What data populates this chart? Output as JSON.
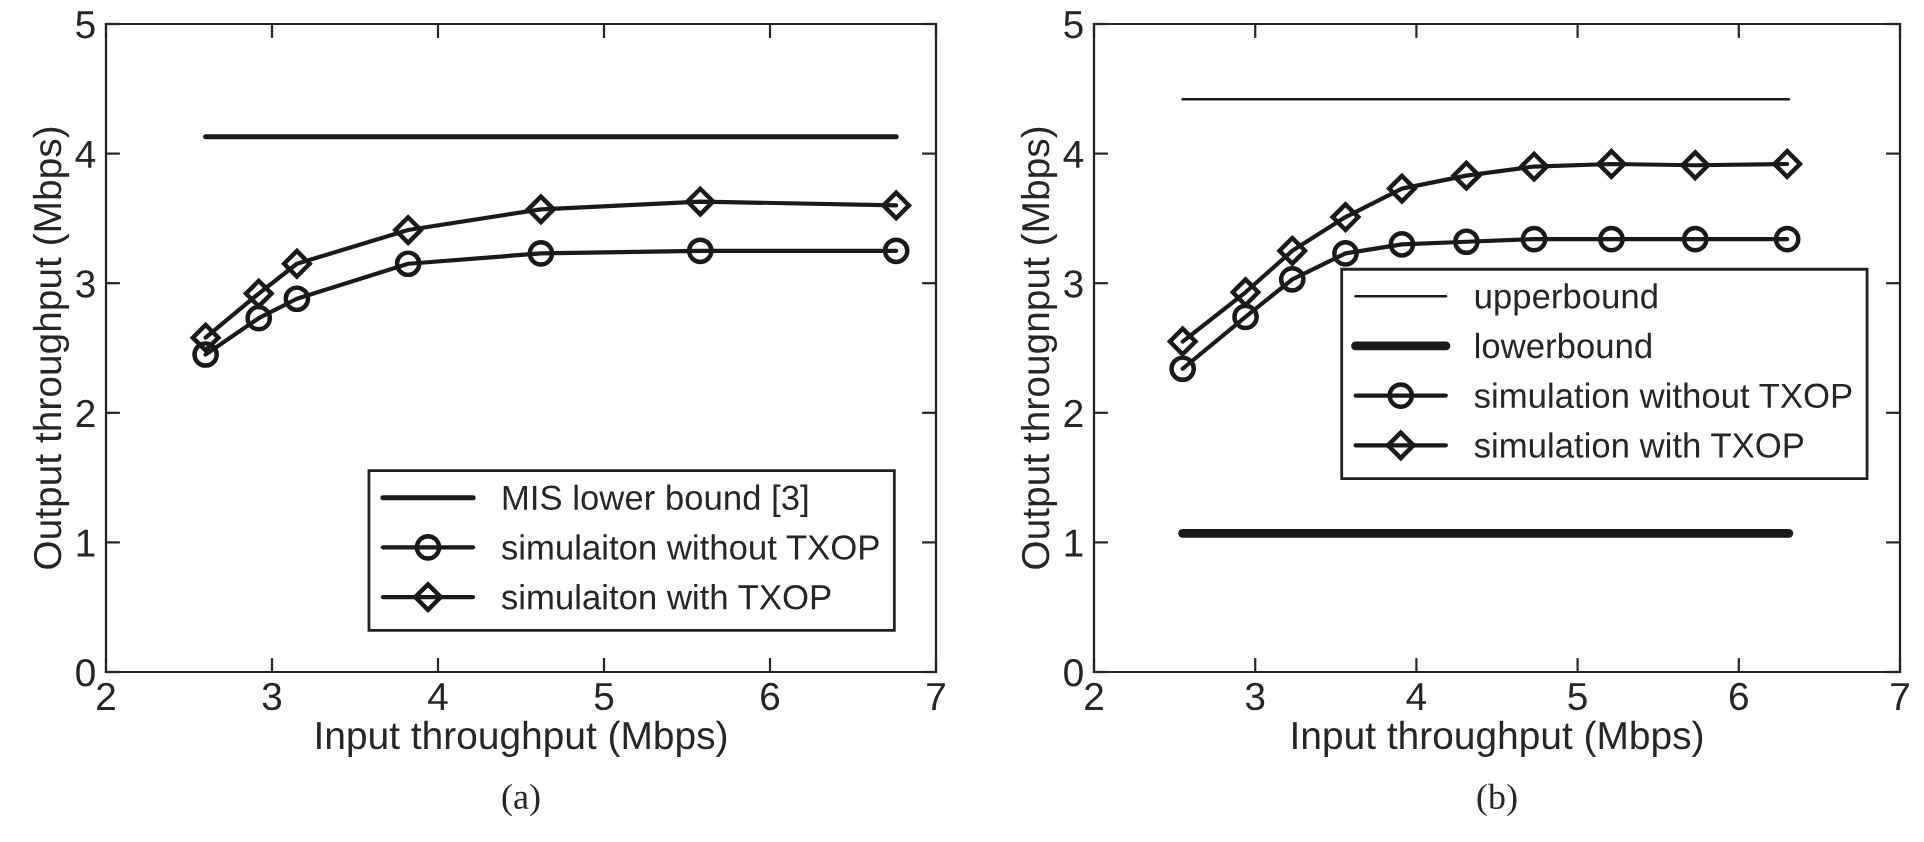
{
  "chart_data": [
    {
      "type": "line",
      "xlabel": "Input throughput (Mbps)",
      "ylabel": "Output throughput (Mbps)",
      "xlim": [
        2,
        7
      ],
      "ylim": [
        0,
        5
      ],
      "xticks": [
        2,
        3,
        4,
        5,
        6,
        7
      ],
      "yticks": [
        0,
        1,
        2,
        3,
        4,
        5
      ],
      "grid": false,
      "legend": "bottom right",
      "annotations": [
        "(a)"
      ],
      "series": [
        {
          "name": "MIS lower bound [3]",
          "color": "#1a1a1a",
          "marker": "none",
          "x": [
            2.6,
            6.76
          ],
          "values": [
            4.13,
            4.13
          ]
        },
        {
          "name": "simulaiton without TXOP",
          "color": "#1a1a1a",
          "marker": "circle",
          "x": [
            2.6,
            2.92,
            3.15,
            3.82,
            4.62,
            5.58,
            6.76
          ],
          "values": [
            2.45,
            2.73,
            2.88,
            3.15,
            3.23,
            3.25,
            3.25
          ]
        },
        {
          "name": "simulaiton with TXOP",
          "color": "#1a1a1a",
          "marker": "diamond",
          "x": [
            2.6,
            2.92,
            3.15,
            3.82,
            4.62,
            5.58,
            6.76
          ],
          "values": [
            2.58,
            2.92,
            3.15,
            3.41,
            3.57,
            3.63,
            3.6
          ]
        }
      ]
    },
    {
      "type": "line",
      "xlabel": "Input throughput (Mbps)",
      "ylabel": "Output througnput (Mbps)",
      "xlim": [
        2,
        7
      ],
      "ylim": [
        0,
        5
      ],
      "xticks": [
        2,
        3,
        4,
        5,
        6,
        7
      ],
      "yticks": [
        0,
        1,
        2,
        3,
        4,
        5
      ],
      "grid": false,
      "legend": "right",
      "annotations": [
        "(b)"
      ],
      "series": [
        {
          "name": "upperbound",
          "color": "#1a1a1a",
          "marker": "none",
          "x": [
            2.55,
            6.31
          ],
          "values": [
            4.42,
            4.42
          ]
        },
        {
          "name": "lowerbound",
          "color": "#1a1a1a",
          "marker": "none",
          "x": [
            2.55,
            6.31
          ],
          "values": [
            1.07,
            1.07
          ]
        },
        {
          "name": "simulation without TXOP",
          "color": "#1a1a1a",
          "marker": "circle",
          "x": [
            2.55,
            2.94,
            3.23,
            3.56,
            3.91,
            4.31,
            4.73,
            5.21,
            5.73,
            6.3
          ],
          "values": [
            2.34,
            2.74,
            3.03,
            3.23,
            3.3,
            3.32,
            3.34,
            3.34,
            3.34,
            3.34
          ]
        },
        {
          "name": "simulation with TXOP",
          "color": "#1a1a1a",
          "marker": "diamond",
          "x": [
            2.55,
            2.94,
            3.23,
            3.56,
            3.91,
            4.31,
            4.73,
            5.21,
            5.73,
            6.3
          ],
          "values": [
            2.55,
            2.93,
            3.25,
            3.51,
            3.73,
            3.83,
            3.9,
            3.92,
            3.91,
            3.92
          ]
        }
      ]
    }
  ]
}
